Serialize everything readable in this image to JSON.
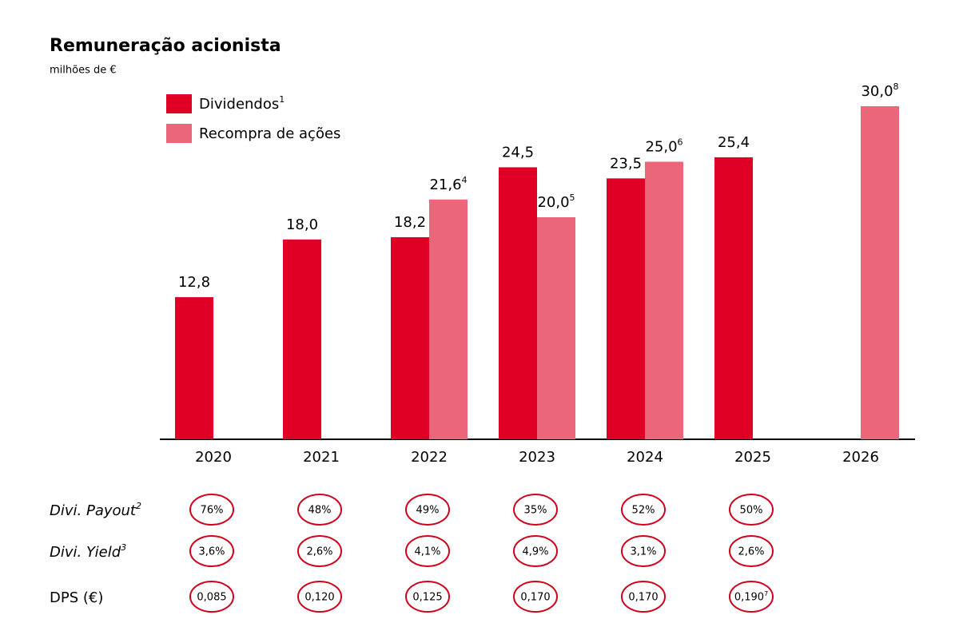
{
  "chart_data": {
    "type": "bar",
    "title": "Remuneração acionista",
    "subtitle": "milhões de €",
    "categories": [
      "2020",
      "2021",
      "2022",
      "2023",
      "2024",
      "2025",
      "2026"
    ],
    "series": [
      {
        "name": "Dividendos",
        "note": "1",
        "color": "#e00025",
        "values": [
          12.8,
          18.0,
          18.2,
          24.5,
          23.5,
          25.4,
          null
        ],
        "value_labels": [
          "12,8",
          "18,0",
          "18,2",
          "24,5",
          "23,5",
          "25,4",
          null
        ],
        "value_notes": [
          null,
          null,
          null,
          null,
          null,
          null,
          null
        ]
      },
      {
        "name": "Recompra de ações",
        "color": "#ec667a",
        "values": [
          null,
          null,
          21.6,
          20.0,
          25.0,
          null,
          30.0
        ],
        "value_labels": [
          null,
          null,
          "21,6",
          "20,0",
          "25,0",
          null,
          "30,0"
        ],
        "value_notes": [
          null,
          null,
          "4",
          "5",
          "6",
          null,
          "8"
        ]
      }
    ],
    "ylim": [
      0,
      30
    ],
    "legend": "upper-left"
  },
  "table": {
    "rows": [
      {
        "label": "Divi. Payout",
        "note": "2",
        "italic": true,
        "values": [
          "76%",
          "48%",
          "49%",
          "35%",
          "52%",
          "50%"
        ],
        "value_notes": [
          null,
          null,
          null,
          null,
          null,
          null
        ]
      },
      {
        "label": "Divi. Yield",
        "note": "3",
        "italic": true,
        "values": [
          "3,6%",
          "2,6%",
          "4,1%",
          "4,9%",
          "3,1%",
          "2,6%"
        ],
        "value_notes": [
          null,
          null,
          null,
          null,
          null,
          null
        ]
      },
      {
        "label": "DPS (€)",
        "note": null,
        "italic": false,
        "values": [
          "0,085",
          "0,120",
          "0,125",
          "0,170",
          "0,170",
          "0,190"
        ],
        "value_notes": [
          null,
          null,
          null,
          null,
          null,
          "7"
        ]
      }
    ]
  }
}
